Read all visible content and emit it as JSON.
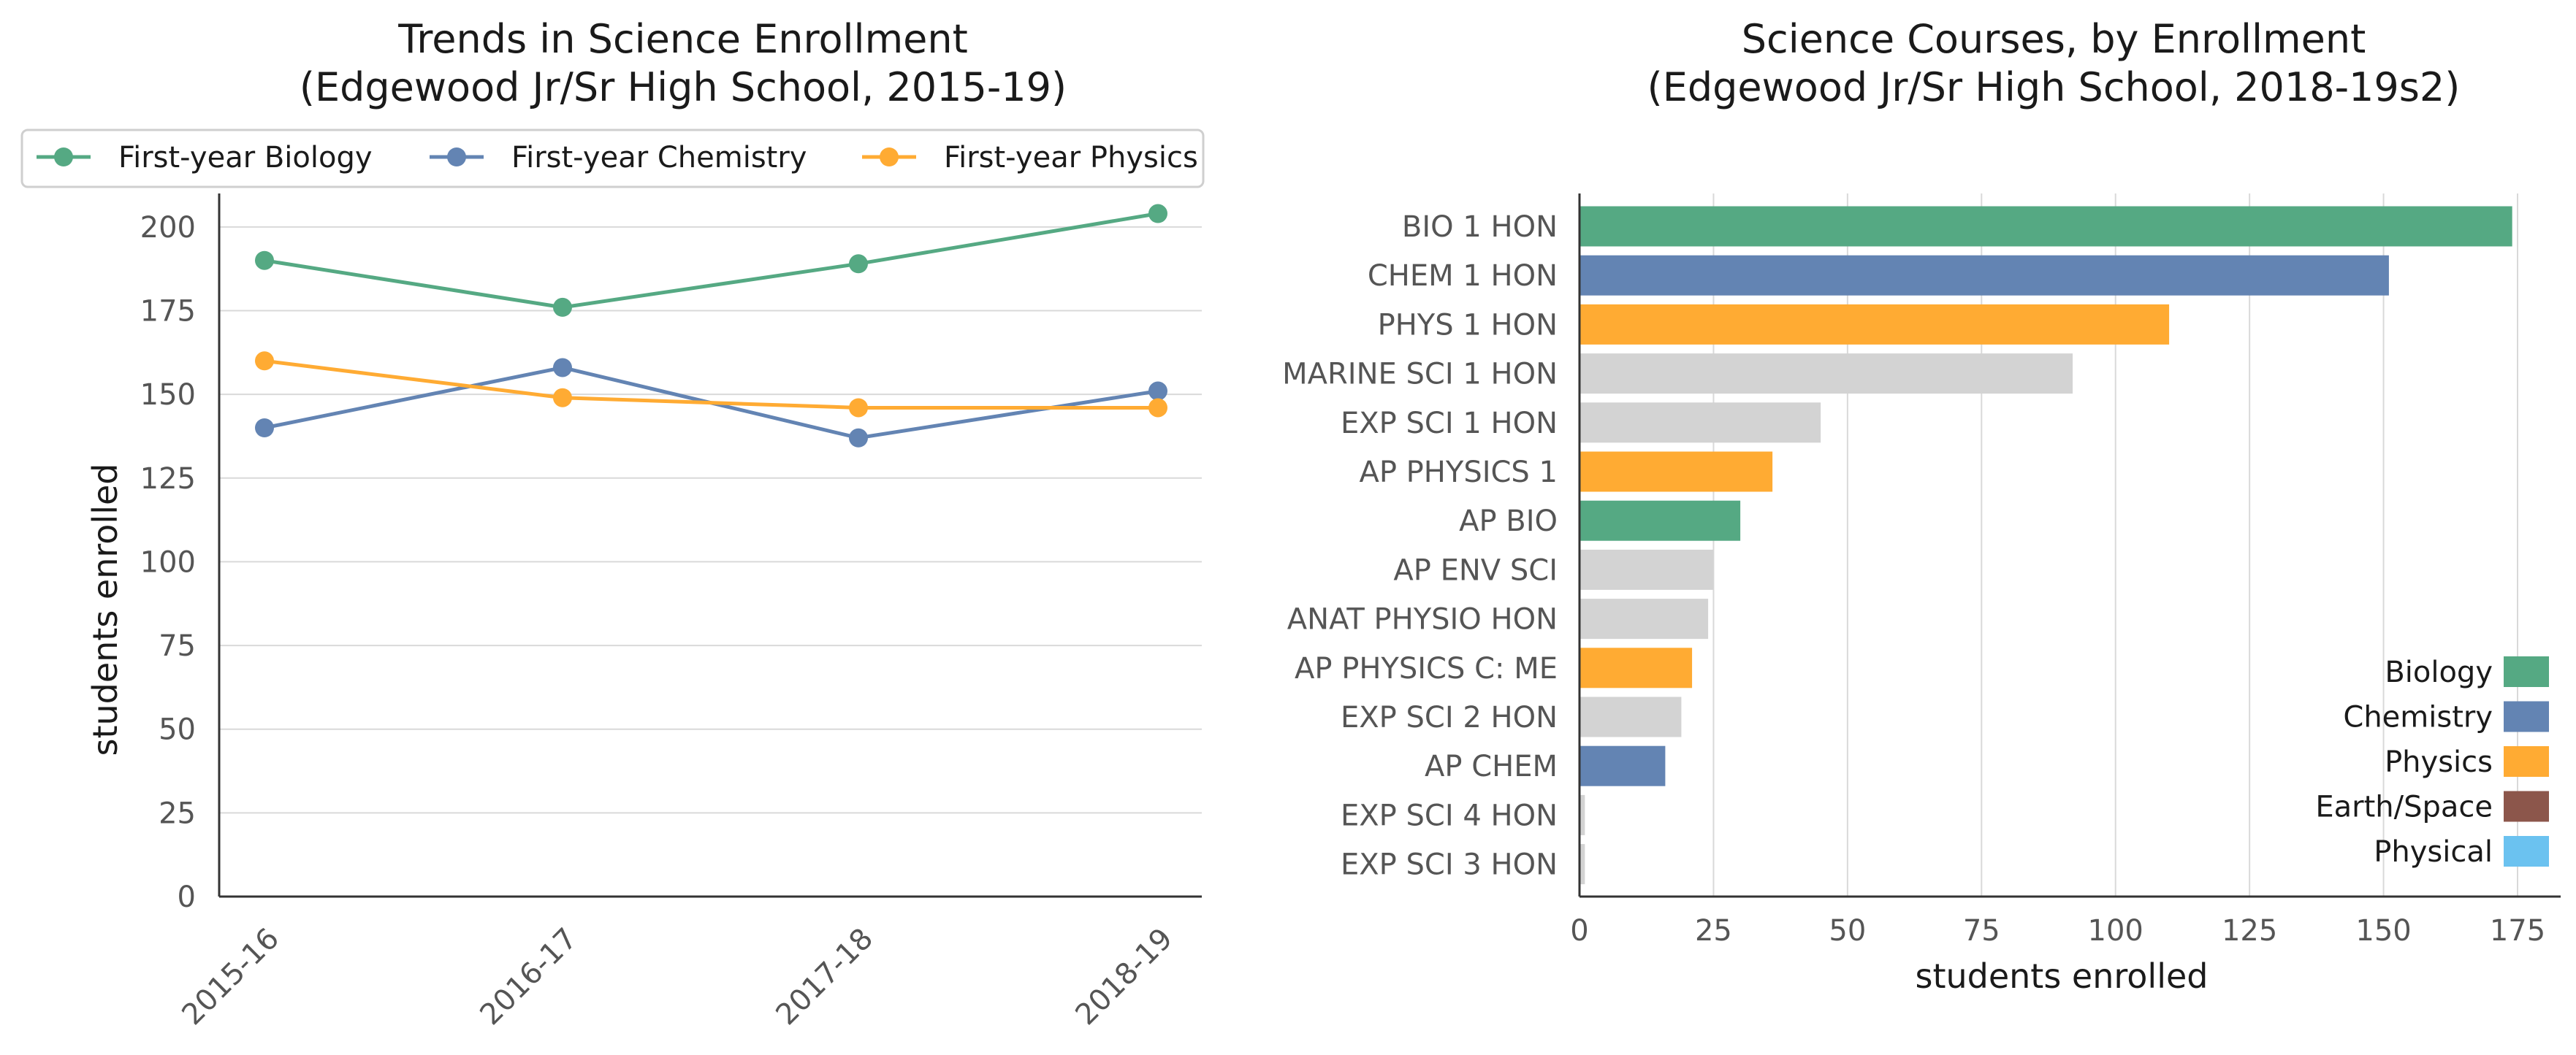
{
  "chart_data": [
    {
      "type": "line",
      "title": [
        "Trends in Science Enrollment",
        "(Edgewood Jr/Sr High School, 2015-19)"
      ],
      "xlabel": "",
      "ylabel": "students enrolled",
      "categories": [
        "2015-16",
        "2016-17",
        "2017-18",
        "2018-19"
      ],
      "ylim": [
        0,
        210
      ],
      "yticks": [
        0,
        25,
        50,
        75,
        100,
        125,
        150,
        175,
        200
      ],
      "grid": "horizontal",
      "legend": "top",
      "series": [
        {
          "name": "First-year Biology",
          "color": "#55a983",
          "values": [
            190,
            176,
            189,
            204
          ]
        },
        {
          "name": "First-year Chemistry",
          "color": "#6384b3",
          "values": [
            140,
            158,
            137,
            151
          ]
        },
        {
          "name": "First-year Physics",
          "color": "#ffab33",
          "values": [
            160,
            149,
            146,
            146
          ]
        }
      ]
    },
    {
      "type": "bar",
      "orientation": "horizontal",
      "title": [
        "Science Courses, by Enrollment",
        "(Edgewood Jr/Sr High School, 2018-19s2)"
      ],
      "xlabel": "students enrolled",
      "ylabel": "",
      "xlim": [
        0,
        182
      ],
      "xticks": [
        0,
        25,
        50,
        75,
        100,
        125,
        150,
        175
      ],
      "grid": "vertical",
      "legend": "bottom-right",
      "bars": [
        {
          "label": "BIO 1 HON",
          "value": 174,
          "group": "Biology"
        },
        {
          "label": "CHEM 1 HON",
          "value": 151,
          "group": "Chemistry"
        },
        {
          "label": "PHYS 1 HON",
          "value": 110,
          "group": "Physics"
        },
        {
          "label": "MARINE SCI 1 HON",
          "value": 92,
          "group": "Other"
        },
        {
          "label": "EXP SCI 1 HON",
          "value": 45,
          "group": "Other"
        },
        {
          "label": "AP PHYSICS 1",
          "value": 36,
          "group": "Physics"
        },
        {
          "label": "AP BIO",
          "value": 30,
          "group": "Biology"
        },
        {
          "label": "AP ENV SCI",
          "value": 25,
          "group": "Other"
        },
        {
          "label": "ANAT PHYSIO HON",
          "value": 24,
          "group": "Other"
        },
        {
          "label": "AP PHYSICS C: ME",
          "value": 21,
          "group": "Physics"
        },
        {
          "label": "EXP SCI 2 HON",
          "value": 19,
          "group": "Other"
        },
        {
          "label": "AP CHEM",
          "value": 16,
          "group": "Chemistry"
        },
        {
          "label": "EXP SCI 4 HON",
          "value": 1,
          "group": "Other"
        },
        {
          "label": "EXP SCI 3 HON",
          "value": 1,
          "group": "Other"
        }
      ],
      "group_colors": {
        "Biology": "#55a983",
        "Chemistry": "#6384b3",
        "Physics": "#ffab33",
        "Earth/Space": "#8c564b",
        "Physical": "#6bc2f0",
        "Other": "#d3d3d3"
      },
      "legend_entries": [
        {
          "name": "Biology",
          "color": "#55a983"
        },
        {
          "name": "Chemistry",
          "color": "#6384b3"
        },
        {
          "name": "Physics",
          "color": "#ffab33"
        },
        {
          "name": "Earth/Space",
          "color": "#8c564b"
        },
        {
          "name": "Physical",
          "color": "#6bc2f0"
        }
      ]
    }
  ]
}
